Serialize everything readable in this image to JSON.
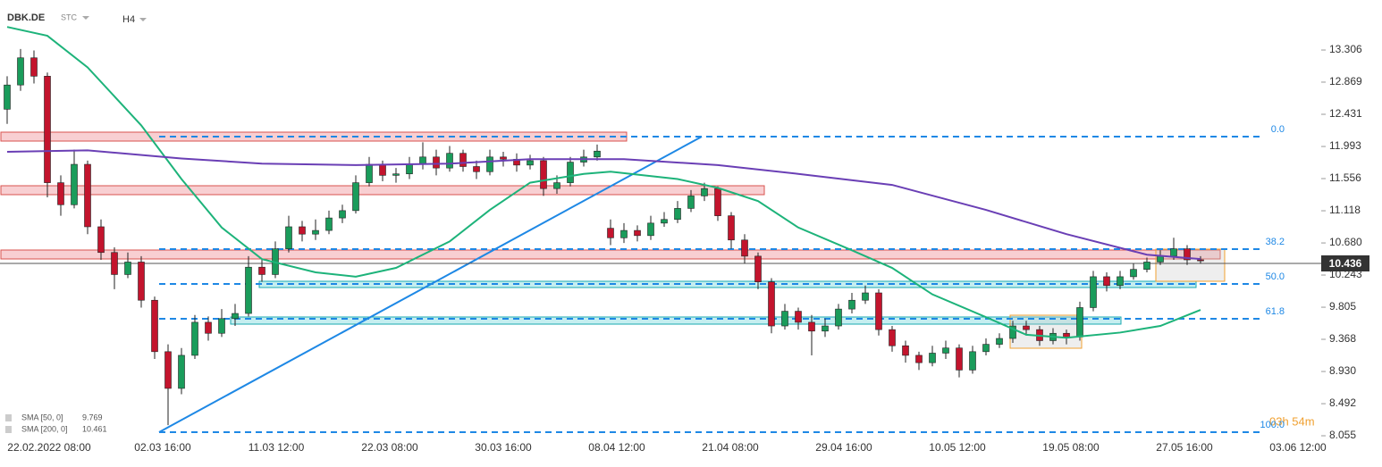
{
  "header": {
    "symbol": "DBK.DE",
    "source": "STC",
    "timeframe": "H4",
    "timer": "03h 54m"
  },
  "chart_data": {
    "type": "candlestick",
    "open": [
      12.5,
      12.83,
      13.2,
      12.95,
      11.5,
      11.2,
      11.75,
      10.9,
      10.55,
      10.25,
      10.42,
      9.9,
      9.2,
      8.7,
      9.15,
      9.6,
      9.45,
      9.65,
      9.72,
      10.35,
      10.25,
      10.6,
      10.9,
      10.8,
      10.85,
      11.02,
      11.12,
      11.5,
      11.75,
      11.6,
      11.62,
      11.75,
      11.85,
      11.7,
      11.9,
      11.72,
      11.65,
      11.85,
      11.82,
      11.74,
      11.8,
      11.42,
      11.5,
      11.78,
      11.85,
      10.88,
      10.75,
      10.85,
      10.78,
      10.95,
      11.0,
      11.15,
      11.32,
      11.42,
      11.05,
      10.72,
      10.5,
      10.15,
      9.55,
      9.75,
      9.6,
      9.48,
      9.55,
      9.78,
      9.9,
      10.0,
      9.5,
      9.28,
      9.15,
      9.05,
      9.18,
      9.25,
      8.95,
      9.2,
      9.3,
      9.38,
      9.55,
      9.5,
      9.35,
      9.45,
      9.4,
      9.8,
      10.22,
      10.1,
      10.22,
      10.32,
      10.42,
      10.5,
      10.6,
      10.45
    ],
    "high": [
      12.95,
      13.32,
      13.3,
      13.0,
      11.6,
      11.95,
      11.8,
      11.0,
      10.62,
      10.55,
      10.5,
      9.95,
      9.3,
      9.25,
      9.7,
      9.68,
      9.78,
      9.85,
      10.5,
      10.45,
      10.7,
      11.05,
      10.98,
      11.0,
      11.12,
      11.2,
      11.6,
      11.85,
      11.8,
      11.7,
      11.85,
      12.05,
      11.95,
      12.0,
      11.95,
      11.8,
      11.95,
      11.92,
      11.9,
      11.88,
      11.85,
      11.6,
      11.85,
      11.95,
      12.02,
      11.0,
      10.95,
      10.92,
      11.05,
      11.1,
      11.25,
      11.4,
      11.5,
      11.45,
      11.1,
      10.8,
      10.55,
      10.2,
      9.85,
      9.8,
      9.7,
      9.65,
      9.85,
      10.0,
      10.1,
      10.05,
      9.55,
      9.35,
      9.2,
      9.28,
      9.35,
      9.3,
      9.28,
      9.38,
      9.45,
      9.62,
      9.62,
      9.55,
      9.52,
      9.5,
      9.88,
      10.3,
      10.28,
      10.3,
      10.4,
      10.48,
      10.58,
      10.75,
      10.65,
      10.5
    ],
    "low": [
      12.3,
      12.75,
      12.85,
      11.3,
      11.05,
      11.15,
      10.8,
      10.45,
      10.05,
      10.2,
      9.8,
      9.1,
      8.2,
      8.62,
      9.1,
      9.35,
      9.4,
      9.55,
      9.68,
      10.15,
      10.2,
      10.55,
      10.7,
      10.72,
      10.8,
      10.95,
      11.08,
      11.45,
      11.52,
      11.5,
      11.55,
      11.68,
      11.6,
      11.65,
      11.65,
      11.55,
      11.6,
      11.72,
      11.65,
      11.68,
      11.32,
      11.35,
      11.45,
      11.72,
      11.8,
      10.65,
      10.68,
      10.7,
      10.72,
      10.9,
      10.95,
      11.1,
      11.25,
      10.98,
      10.6,
      10.4,
      10.05,
      9.45,
      9.5,
      9.5,
      9.15,
      9.4,
      9.5,
      9.72,
      9.85,
      9.42,
      9.2,
      9.05,
      8.95,
      9.0,
      9.1,
      8.85,
      8.9,
      9.15,
      9.25,
      9.32,
      9.42,
      9.28,
      9.3,
      9.3,
      9.35,
      9.75,
      10.02,
      10.05,
      10.18,
      10.28,
      10.38,
      10.45,
      10.38,
      10.4
    ],
    "close": [
      12.83,
      13.2,
      12.95,
      11.5,
      11.2,
      11.75,
      10.9,
      10.55,
      10.25,
      10.42,
      9.9,
      9.2,
      8.7,
      9.15,
      9.6,
      9.45,
      9.65,
      9.72,
      10.35,
      10.25,
      10.6,
      10.9,
      10.8,
      10.85,
      11.02,
      11.12,
      11.5,
      11.75,
      11.6,
      11.62,
      11.75,
      11.85,
      11.7,
      11.9,
      11.72,
      11.65,
      11.85,
      11.82,
      11.74,
      11.8,
      11.42,
      11.5,
      11.78,
      11.85,
      11.93,
      10.75,
      10.85,
      10.78,
      10.95,
      11.0,
      11.15,
      11.32,
      11.42,
      11.05,
      10.72,
      10.5,
      10.15,
      9.55,
      9.75,
      9.6,
      9.48,
      9.55,
      9.78,
      9.9,
      10.0,
      9.5,
      9.28,
      9.15,
      9.05,
      9.18,
      9.25,
      8.95,
      9.2,
      9.3,
      9.38,
      9.55,
      9.5,
      9.35,
      9.45,
      9.4,
      9.8,
      10.22,
      10.1,
      10.22,
      10.32,
      10.42,
      10.5,
      10.6,
      10.45,
      10.436
    ],
    "up_color": "#1a9c5b",
    "down_color": "#c3142d",
    "series": [
      {
        "name": "SMA [50, 0]",
        "color": "#1db37a",
        "x": [
          0,
          3,
          6,
          10,
          13,
          16,
          19,
          23,
          26,
          29,
          33,
          36,
          39,
          43,
          45,
          50,
          53,
          56,
          59,
          63,
          66,
          69,
          73,
          76,
          79,
          83,
          86,
          89
        ],
        "values": [
          13.62,
          13.5,
          13.07,
          12.28,
          11.55,
          10.89,
          10.46,
          10.28,
          10.22,
          10.34,
          10.7,
          11.13,
          11.5,
          11.62,
          11.65,
          11.55,
          11.43,
          11.25,
          10.89,
          10.58,
          10.34,
          9.98,
          9.67,
          9.43,
          9.39,
          9.46,
          9.55,
          9.769
        ]
      },
      {
        "name": "SMA [200, 0]",
        "color": "#6a3fb5",
        "x": [
          0,
          6,
          13,
          19,
          26,
          33,
          39,
          46,
          53,
          59,
          66,
          73,
          79,
          85,
          89
        ],
        "values": [
          11.92,
          11.94,
          11.83,
          11.76,
          11.74,
          11.76,
          11.82,
          11.82,
          11.74,
          11.62,
          11.47,
          11.13,
          10.8,
          10.52,
          10.461
        ]
      }
    ],
    "fib": [
      {
        "label": "0.0",
        "value": 12.127
      },
      {
        "label": "38.2",
        "value": 10.595
      },
      {
        "label": "50.0",
        "value": 10.122
      },
      {
        "label": "61.8",
        "value": 9.647
      },
      {
        "label": "100.0",
        "value": 8.104
      }
    ],
    "ylim": [
      8.031,
      13.987
    ],
    "yticks": [
      13.306,
      12.869,
      12.431,
      11.993,
      11.556,
      {
        "value": 11.118,
        "label": "11.118"
      },
      {
        "value": 10.68,
        "label": "10.680"
      },
      10.243,
      {
        "value": 9.805,
        "label": "9.805"
      },
      {
        "value": 9.368,
        "label": "9.368"
      },
      {
        "value": 8.93,
        "label": "8.930"
      },
      8.492,
      8.055
    ],
    "xlabels": [
      "22.02.2022  08:00",
      "02.03  16:00",
      "11.03  12:00",
      "22.03  08:00",
      "30.03  16:00",
      "08.04  12:00",
      "21.04  08:00",
      "29.04  16:00",
      "10.05  12:00",
      "19.05  08:00",
      "27.05  16:00",
      "03.06  12:00"
    ]
  }
}
